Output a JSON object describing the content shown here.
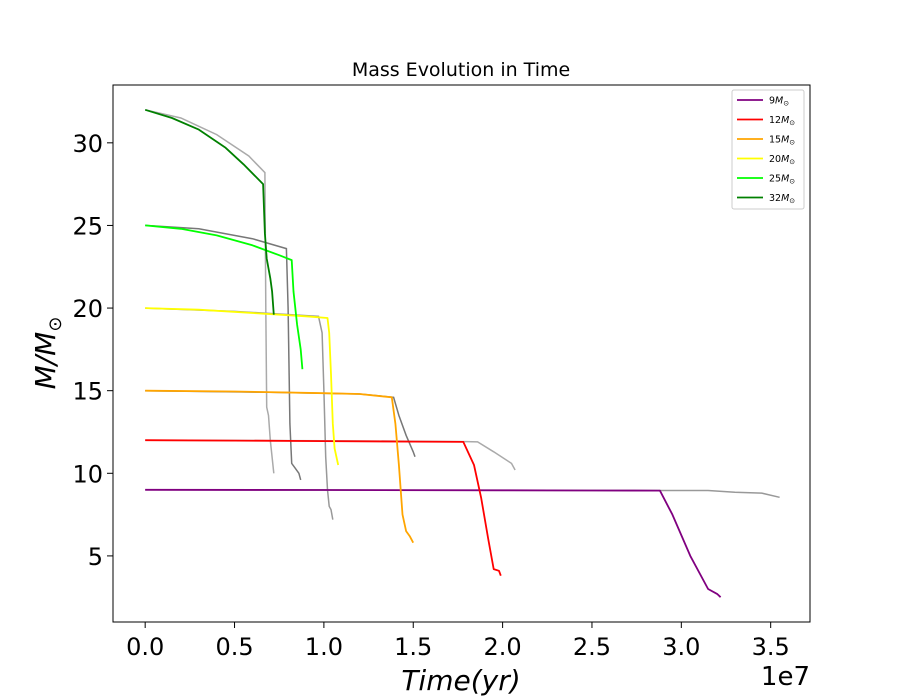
{
  "chart_data": {
    "type": "line",
    "title": "Mass Evolution in Time",
    "xlabel": "Time(yr)",
    "ylabel": "M/M",
    "ylabel_subscript": "⊙",
    "x_offset_label": "1e7",
    "x_scale": 10000000,
    "xlim": [
      -0.18,
      3.72
    ],
    "ylim": [
      1,
      33.5
    ],
    "xticks": [
      "0.0",
      "0.5",
      "1.0",
      "1.5",
      "2.0",
      "2.5",
      "3.0",
      "3.5"
    ],
    "yticks": [
      "5",
      "10",
      "15",
      "20",
      "25",
      "30"
    ],
    "xtick_values": [
      0,
      0.5,
      1.0,
      1.5,
      2.0,
      2.5,
      3.0,
      3.5
    ],
    "ytick_values": [
      5,
      10,
      15,
      20,
      25,
      30
    ],
    "legend_position": "top-right",
    "grid": false,
    "series": [
      {
        "name": "9M",
        "color": "#800080",
        "x": [
          0,
          1.0,
          2.0,
          2.5,
          2.88,
          2.95,
          3.05,
          3.15,
          3.2,
          3.22
        ],
        "y": [
          9.0,
          8.99,
          8.97,
          8.96,
          8.95,
          7.5,
          5.0,
          3.0,
          2.7,
          2.5
        ]
      },
      {
        "name": "12M",
        "color": "#ff0000",
        "x": [
          0,
          0.5,
          1.0,
          1.5,
          1.78,
          1.84,
          1.88,
          1.92,
          1.95,
          1.98,
          1.99
        ],
        "y": [
          12.0,
          11.98,
          11.95,
          11.92,
          11.9,
          10.5,
          8.5,
          6.0,
          4.2,
          4.1,
          3.8
        ]
      },
      {
        "name": "15M",
        "color": "#ffa500",
        "x": [
          0,
          0.5,
          1.0,
          1.2,
          1.38,
          1.4,
          1.42,
          1.44,
          1.46,
          1.48,
          1.5
        ],
        "y": [
          15.0,
          14.95,
          14.85,
          14.8,
          14.6,
          13.0,
          10.5,
          7.5,
          6.5,
          6.2,
          5.8
        ]
      },
      {
        "name": "20M",
        "color": "#ffff00",
        "x": [
          0,
          0.3,
          0.6,
          0.9,
          1.02,
          1.03,
          1.04,
          1.05,
          1.06,
          1.08
        ],
        "y": [
          20.0,
          19.9,
          19.7,
          19.5,
          19.4,
          18.5,
          16.0,
          13.0,
          11.5,
          10.5
        ]
      },
      {
        "name": "25M",
        "color": "#00ff00",
        "x": [
          0,
          0.2,
          0.4,
          0.6,
          0.75,
          0.82,
          0.83,
          0.85,
          0.87,
          0.88
        ],
        "y": [
          25.0,
          24.8,
          24.4,
          23.8,
          23.2,
          22.9,
          21.0,
          19.0,
          17.5,
          16.3
        ]
      },
      {
        "name": "32M",
        "color": "#008000",
        "x": [
          0,
          0.15,
          0.3,
          0.45,
          0.55,
          0.66,
          0.67,
          0.68,
          0.7,
          0.71,
          0.72
        ],
        "y": [
          32.0,
          31.5,
          30.8,
          29.7,
          28.7,
          27.5,
          24.5,
          23.0,
          21.8,
          21.0,
          19.6
        ]
      }
    ],
    "reference_series": [
      {
        "color": "#999999",
        "x": [
          0,
          1.0,
          2.0,
          2.9,
          3.15,
          3.3,
          3.45,
          3.55
        ],
        "y": [
          9.0,
          8.99,
          8.97,
          8.96,
          8.96,
          8.85,
          8.8,
          8.55
        ]
      },
      {
        "color": "#aaaaaa",
        "x": [
          0,
          1.0,
          1.8,
          1.86,
          1.95,
          2.05,
          2.07
        ],
        "y": [
          12.0,
          11.97,
          11.92,
          11.9,
          11.3,
          10.6,
          10.2
        ]
      },
      {
        "color": "#777777",
        "x": [
          0,
          0.7,
          1.2,
          1.39,
          1.42,
          1.46,
          1.5,
          1.51
        ],
        "y": [
          15.0,
          14.9,
          14.8,
          14.6,
          13.5,
          12.3,
          11.3,
          11.0
        ]
      },
      {
        "color": "#999999",
        "x": [
          0,
          0.5,
          0.97,
          0.99,
          1.0,
          1.01,
          1.02,
          1.03,
          1.04,
          1.05
        ],
        "y": [
          20.0,
          19.8,
          19.5,
          18.5,
          15.0,
          11.0,
          9.0,
          8.0,
          7.8,
          7.2
        ]
      },
      {
        "color": "#777777",
        "x": [
          0,
          0.3,
          0.6,
          0.79,
          0.8,
          0.81,
          0.82,
          0.84,
          0.86,
          0.87
        ],
        "y": [
          25.0,
          24.8,
          24.2,
          23.6,
          20.0,
          13.0,
          10.6,
          10.3,
          10.0,
          9.6
        ]
      },
      {
        "color": "#aaaaaa",
        "x": [
          0,
          0.2,
          0.4,
          0.58,
          0.67,
          0.675,
          0.68,
          0.69,
          0.7,
          0.72
        ],
        "y": [
          32.0,
          31.5,
          30.5,
          29.2,
          28.2,
          20.0,
          14.0,
          13.5,
          12.0,
          10.0
        ]
      }
    ]
  }
}
